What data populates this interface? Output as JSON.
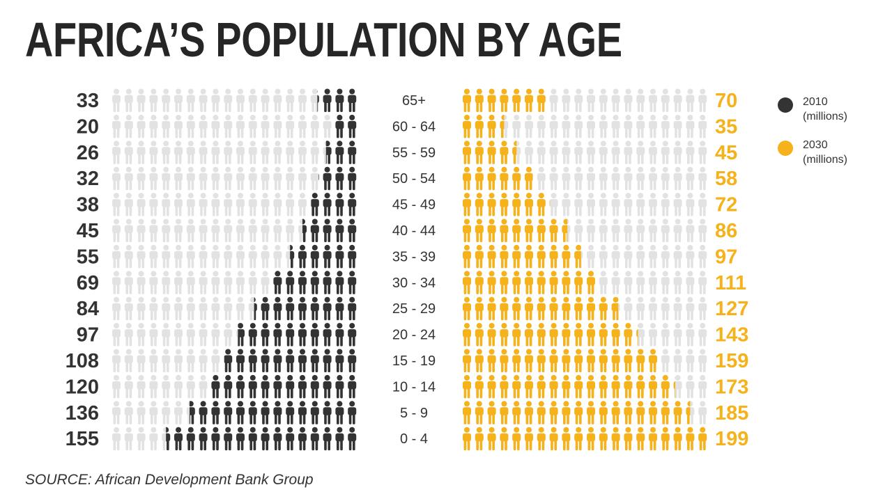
{
  "title": "AFRICA’S POPULATION BY AGE",
  "source": "SOURCE: African Development Bank Group",
  "colors": {
    "y2010": "#333333",
    "y2030": "#f6b21b",
    "empty": "#e2e2e2",
    "title": "#262626"
  },
  "legend": [
    {
      "label": "2010",
      "sub": "(millions)",
      "color": "#333333"
    },
    {
      "label": "2030",
      "sub": "(millions)",
      "color": "#f6b21b"
    }
  ],
  "chart_data": {
    "type": "bar",
    "title": "AFRICA’S POPULATION BY AGE",
    "units": "millions",
    "icon_value": 10,
    "icons_per_row": 20,
    "categories": [
      "65+",
      "60 - 64",
      "55 - 59",
      "50 - 54",
      "45 - 49",
      "40 - 44",
      "35 - 39",
      "30 - 34",
      "25 - 29",
      "20 - 24",
      "15 - 19",
      "10 - 14",
      "5 - 9",
      "0 - 4"
    ],
    "series": [
      {
        "name": "2010",
        "values": [
          33,
          20,
          26,
          32,
          38,
          45,
          55,
          69,
          84,
          97,
          108,
          120,
          136,
          155
        ]
      },
      {
        "name": "2030",
        "values": [
          70,
          35,
          45,
          58,
          72,
          86,
          97,
          111,
          127,
          143,
          159,
          173,
          185,
          199
        ]
      }
    ],
    "xlabel": "",
    "ylabel": "",
    "legend_position": "right",
    "grid": false
  }
}
